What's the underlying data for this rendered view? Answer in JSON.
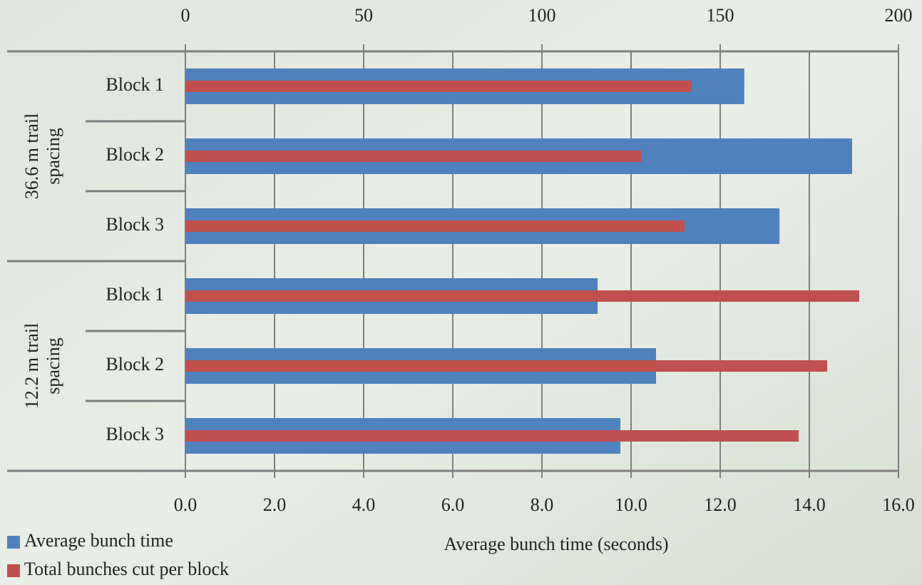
{
  "chart_data": {
    "type": "bar",
    "orientation": "horizontal",
    "x_label": "Average bunch time (seconds)",
    "groups": [
      {
        "label": [
          "36.6 m trail",
          "spacing"
        ],
        "categories": [
          "Block 1",
          "Block 2",
          "Block 3"
        ]
      },
      {
        "label": [
          "12.2 m trail",
          "spacing"
        ],
        "categories": [
          "Block 1",
          "Block 2",
          "Block 3"
        ]
      }
    ],
    "series": [
      {
        "name": "Average bunch time",
        "color": "#4f81bd",
        "axis": "x",
        "values": [
          12.54,
          14.96,
          13.33,
          9.25,
          10.56,
          9.76
        ]
      },
      {
        "name": "Total bunches cut per block",
        "color": "#c0504d",
        "axis": "x2",
        "values": [
          142,
          128,
          140,
          189,
          180,
          172
        ]
      }
    ],
    "xlim": [
      0,
      16
    ],
    "xticks": [
      {
        "value": 0,
        "label": "0.0"
      },
      {
        "value": 2,
        "label": "2.0"
      },
      {
        "value": 4,
        "label": "4.0"
      },
      {
        "value": 6,
        "label": "6.0"
      },
      {
        "value": 8,
        "label": "8.0"
      },
      {
        "value": 10,
        "label": "10.0"
      },
      {
        "value": 12,
        "label": "12.0"
      },
      {
        "value": 14,
        "label": "14.0"
      },
      {
        "value": 16,
        "label": "16.0"
      }
    ],
    "x2lim": [
      0,
      200
    ],
    "x2ticks": [
      0,
      50,
      100,
      150,
      200
    ],
    "grid": true,
    "legend": "bottom-left"
  }
}
